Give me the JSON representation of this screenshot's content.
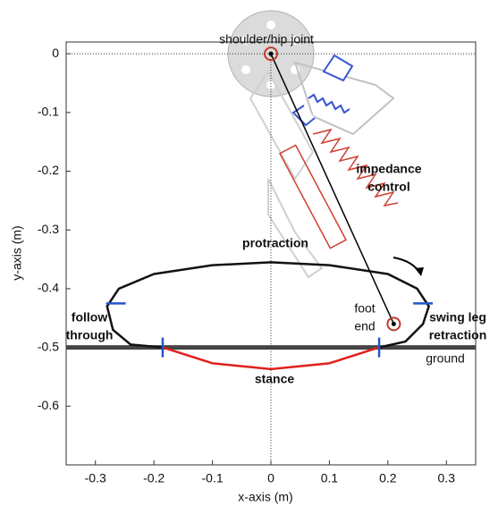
{
  "chart_data": {
    "type": "trajectory",
    "xlabel": "x-axis (m)",
    "ylabel": "y-axis (m)",
    "xlim": [
      -0.35,
      0.35
    ],
    "ylim": [
      -0.7,
      0.02
    ],
    "xticks": [
      -0.3,
      -0.2,
      -0.1,
      0,
      0.1,
      0.2,
      0.3
    ],
    "yticks": [
      0,
      -0.1,
      -0.2,
      -0.3,
      -0.4,
      -0.5,
      -0.6
    ],
    "ground_level": -0.5,
    "series": [
      {
        "color": "#111111",
        "x": [
          0.185,
          0.23,
          0.26,
          0.27,
          0.25,
          0.2,
          0.1,
          0,
          -0.1,
          -0.2,
          -0.26,
          -0.28,
          -0.27,
          -0.24,
          -0.185
        ],
        "values": [
          -0.5,
          -0.49,
          -0.46,
          -0.43,
          -0.4,
          -0.375,
          -0.36,
          -0.355,
          -0.36,
          -0.375,
          -0.4,
          -0.43,
          -0.47,
          -0.495,
          -0.5
        ]
      },
      {
        "color": "#e0201c",
        "x": [
          -0.185,
          -0.1,
          0,
          0.1,
          0.185
        ],
        "values": [
          -0.5,
          -0.527,
          -0.537,
          -0.527,
          -0.5
        ]
      },
      {
        "color": "#000000",
        "x": [
          0,
          0.21
        ],
        "values": [
          0,
          -0.46
        ]
      }
    ],
    "event_markers": {
      "color": "#2255cc",
      "x": [
        -0.185,
        0.185,
        -0.265,
        0.26
      ],
      "values": [
        -0.5,
        -0.5,
        -0.425,
        -0.425
      ]
    },
    "annotations": [
      {
        "lines": [
          "shoulder/hip joint"
        ]
      },
      {
        "lines": [
          "impedance",
          "control"
        ]
      },
      {
        "lines": [
          "protraction"
        ]
      },
      {
        "lines": [
          "foot",
          "end"
        ]
      },
      {
        "lines": [
          "follow",
          "through"
        ]
      },
      {
        "lines": [
          "swing leg",
          "retraction"
        ]
      },
      {
        "lines": [
          "ground"
        ]
      },
      {
        "lines": [
          "stance"
        ]
      }
    ]
  }
}
